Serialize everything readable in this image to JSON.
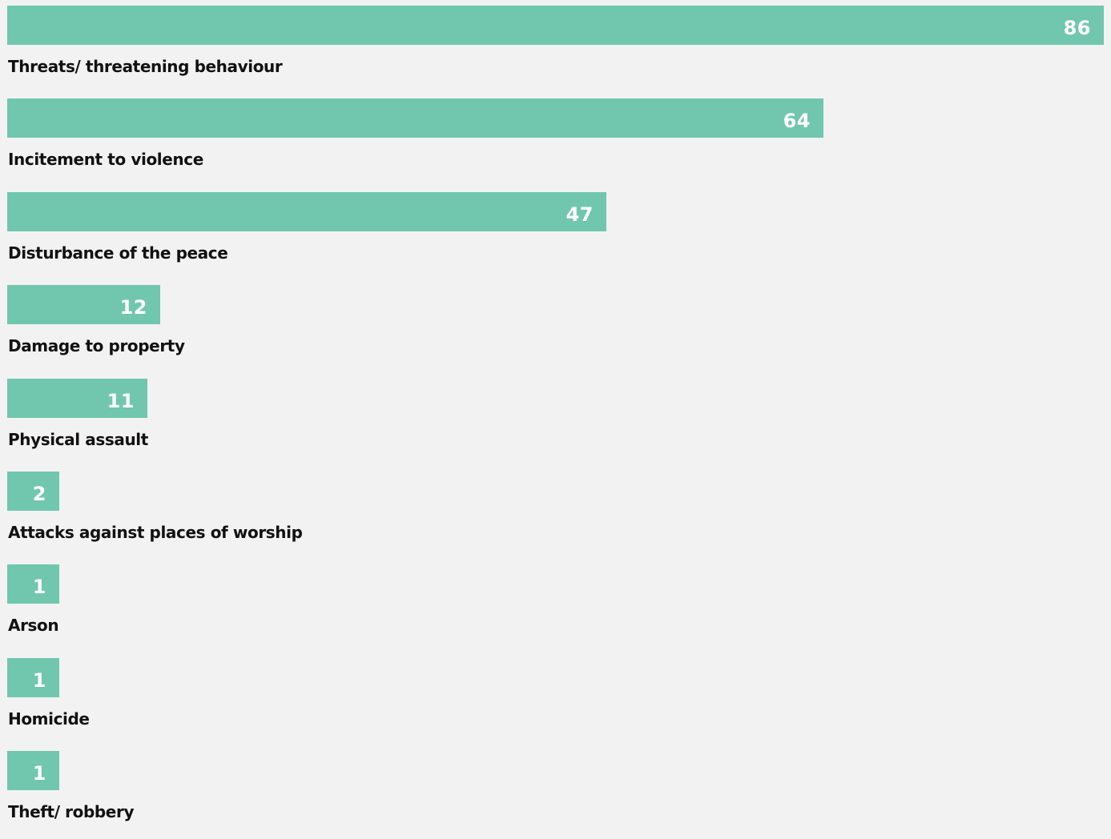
{
  "colors": {
    "background": "#f2f2f2",
    "bar": "#70c7ae",
    "value_text": "#ffffff",
    "label_text": "#111111"
  },
  "chart_data": {
    "type": "bar",
    "orientation": "horizontal",
    "title": "",
    "xlabel": "",
    "ylabel": "",
    "grid": false,
    "legend": "none",
    "xlim": [
      0,
      86
    ],
    "categories": [
      "Threats/ threatening behaviour",
      "Incitement to violence",
      "Disturbance of the peace",
      "Damage to property",
      "Physical assault",
      "Attacks against places of worship",
      "Arson",
      "Homicide",
      "Theft/ robbery"
    ],
    "values": [
      86,
      64,
      47,
      12,
      11,
      2,
      1,
      1,
      1
    ],
    "data_labels": [
      "86",
      "64",
      "47",
      "12",
      "11",
      "2",
      "1",
      "1",
      "1"
    ]
  }
}
